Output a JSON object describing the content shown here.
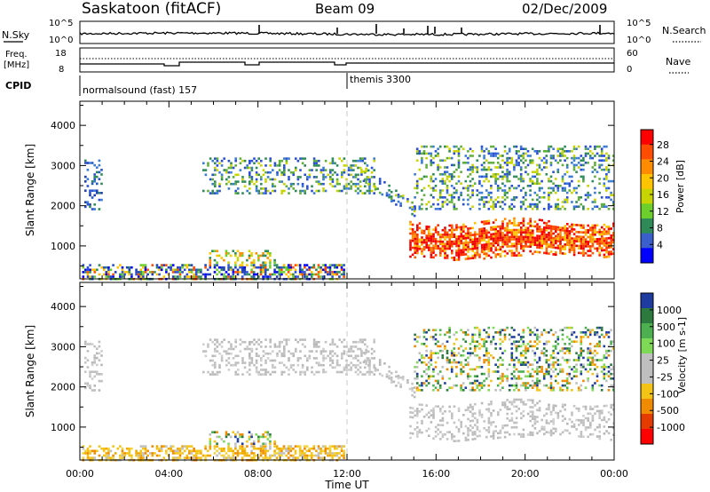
{
  "header": {
    "station": "Saskatoon (fitACF)",
    "beam": "Beam 09",
    "date": "02/Dec/2009"
  },
  "aux_panels": {
    "nsky": {
      "label": "N.Sky",
      "tick_top": "10^5",
      "tick_bottom": "10^0",
      "right_tick_top": "10^5",
      "right_tick_bottom": "10^0",
      "right_label": "N.Search"
    },
    "freq": {
      "label_line1": "Freq.",
      "label_line2": "[MHz]",
      "tick_top": "18",
      "tick_bottom": "8",
      "right_tick_top": "60",
      "right_tick_bottom": "0",
      "right_label": "Nave"
    },
    "cpid": {
      "label": "CPID",
      "segments": [
        {
          "name": "normalsound (fast) 157",
          "start_hour": 0,
          "end_hour": 12
        },
        {
          "name": "themis 3300",
          "start_hour": 12,
          "end_hour": 24
        }
      ]
    }
  },
  "chart_data": [
    {
      "type": "heatmap",
      "name": "power-panel",
      "ylabel": "Slant Range [km]",
      "xlabel": "",
      "x_ticks": [
        "00:00",
        "04:00",
        "08:00",
        "12:00",
        "16:00",
        "20:00",
        "00:00"
      ],
      "xlim_hours": [
        0,
        24
      ],
      "ylim": [
        180,
        4600
      ],
      "y_ticks": [
        1000,
        2000,
        3000,
        4000
      ],
      "colorbar": {
        "label": "Power [dB]",
        "ticks": [
          "28",
          "24",
          "20",
          "16",
          "12",
          "8",
          "4"
        ],
        "colors": [
          "#ff0000",
          "#ff4d00",
          "#ff8c00",
          "#ffc400",
          "#c8d400",
          "#6ccf2b",
          "#2e8b57",
          "#3a5fcd",
          "#0000ff"
        ]
      },
      "regions": [
        {
          "name": "early patch",
          "t": [
            0.2,
            1.0
          ],
          "r": [
            1900,
            3150
          ],
          "level": "low"
        },
        {
          "name": "near-range clutter",
          "t": [
            0.1,
            11.9
          ],
          "r": [
            180,
            550
          ],
          "level": "mixed"
        },
        {
          "name": "E-region band",
          "t": [
            5.8,
            8.8
          ],
          "r": [
            600,
            900
          ],
          "level": "mid"
        },
        {
          "name": "midday echoes",
          "t": [
            5.5,
            13.2
          ],
          "r": [
            2300,
            3200
          ],
          "level": "low-mid"
        },
        {
          "name": "descending trace",
          "t": [
            12.6,
            15.0
          ],
          "r": [
            1600,
            2900
          ],
          "level": "low-mid"
        },
        {
          "name": "evening strong band",
          "t": [
            14.8,
            24.0
          ],
          "r": [
            700,
            1800
          ],
          "level": "high"
        },
        {
          "name": "late upper echoes",
          "t": [
            15.0,
            24.0
          ],
          "r": [
            1900,
            3500
          ],
          "level": "low-mid"
        }
      ]
    },
    {
      "type": "heatmap",
      "name": "velocity-panel",
      "ylabel": "Slant Range [km]",
      "xlabel": "Time UT",
      "x_ticks": [
        "00:00",
        "04:00",
        "08:00",
        "12:00",
        "16:00",
        "20:00",
        "00:00"
      ],
      "xlim_hours": [
        0,
        24
      ],
      "ylim": [
        180,
        4600
      ],
      "y_ticks": [
        1000,
        2000,
        3000,
        4000
      ],
      "colorbar": {
        "label": "Velocity [m s-1]",
        "ticks": [
          "1000",
          "500",
          "100",
          "25",
          "-25",
          "-100",
          "-500",
          "-1000"
        ],
        "colors": [
          "#1e3ca0",
          "#2d7a3f",
          "#4caf50",
          "#7ed957",
          "#bfbfbf",
          "#bfbfbf",
          "#f3c316",
          "#f08a00",
          "#e53b00",
          "#ff0000"
        ]
      },
      "regions": [
        {
          "name": "early patch",
          "t": [
            0.2,
            1.0
          ],
          "r": [
            1900,
            3150
          ],
          "level": "ground-scatter"
        },
        {
          "name": "near-range flow",
          "t": [
            0.1,
            11.9
          ],
          "r": [
            180,
            550
          ],
          "level": "negative"
        },
        {
          "name": "E-region band",
          "t": [
            5.8,
            8.8
          ],
          "r": [
            600,
            900
          ],
          "level": "mixed"
        },
        {
          "name": "midday echoes",
          "t": [
            5.5,
            13.2
          ],
          "r": [
            2300,
            3200
          ],
          "level": "ground-scatter"
        },
        {
          "name": "descending trace",
          "t": [
            12.6,
            15.0
          ],
          "r": [
            1600,
            2900
          ],
          "level": "ground-scatter"
        },
        {
          "name": "evening band",
          "t": [
            14.8,
            24.0
          ],
          "r": [
            700,
            1800
          ],
          "level": "ground-scatter"
        },
        {
          "name": "late upper echoes",
          "t": [
            15.0,
            24.0
          ],
          "r": [
            1900,
            3500
          ],
          "level": "mixed"
        }
      ]
    }
  ]
}
